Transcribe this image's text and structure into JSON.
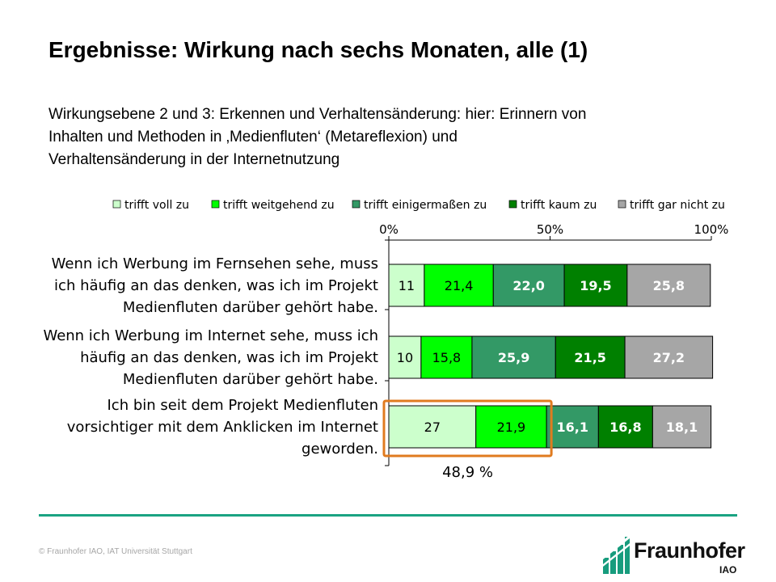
{
  "slide": {
    "title": "Ergebnisse: Wirkung nach sechs Monaten, alle (1)",
    "subtitle_lines": [
      "Wirkungsebene 2 und 3: Erkennen und Verhaltensänderung: hier: Erinnern von",
      "Inhalten und Methoden in ‚Medienfluten‘ (Metareflexion) und",
      "Verhaltensänderung in der Internetnutzung"
    ],
    "copyright": "© Fraunhofer IAO, IAT Universität Stuttgart",
    "logo_name": "Fraunhofer",
    "logo_sub": "IAO"
  },
  "chart_data": {
    "type": "bar",
    "orientation": "horizontal",
    "stacked": true,
    "xlim": [
      0,
      100
    ],
    "x_ticks": [
      "0%",
      "50%",
      "100%"
    ],
    "legend_position": "top",
    "categories": [
      [
        "Wenn ich Werbung im Fernsehen sehe, muss",
        "ich häufig an das denken, was ich im Projekt",
        "Medienfluten darüber gehört habe."
      ],
      [
        "Wenn ich Werbung im Internet sehe, muss ich",
        "häufig an das denken, was ich im Projekt",
        "Medienfluten darüber gehört habe."
      ],
      [
        "Ich bin seit dem Projekt Medienfluten",
        "vorsichtiger mit dem Anklicken im Internet",
        "geworden."
      ]
    ],
    "series": [
      {
        "name": "trifft voll zu",
        "color": "#ccffcc",
        "values": [
          11,
          10,
          27
        ],
        "labels": [
          "11",
          "10",
          "27"
        ]
      },
      {
        "name": "trifft weitgehend zu",
        "color": "#00ff00",
        "values": [
          21.4,
          15.8,
          21.9
        ],
        "labels": [
          "21,4",
          "15,8",
          "21,9"
        ]
      },
      {
        "name": "trifft einigermaßen zu",
        "color": "#339966",
        "values": [
          22.0,
          25.9,
          16.1
        ],
        "labels": [
          "22,0",
          "25,9",
          "16,1"
        ]
      },
      {
        "name": "trifft kaum zu",
        "color": "#008000",
        "values": [
          19.5,
          21.5,
          16.8
        ],
        "labels": [
          "19,5",
          "21,5",
          "16,8"
        ]
      },
      {
        "name": "trifft gar nicht zu",
        "color": "#a6a6a6",
        "values": [
          25.8,
          27.2,
          18.1
        ],
        "labels": [
          "25,8",
          "27,2",
          "18,1"
        ]
      }
    ],
    "label_colors": [
      "#000000",
      "#000000",
      "#ffffff",
      "#ffffff",
      "#ffffff"
    ],
    "highlight": {
      "row": 2,
      "series": [
        0,
        1
      ],
      "color": "#e07b1f",
      "annotation": "48,9 %"
    }
  }
}
